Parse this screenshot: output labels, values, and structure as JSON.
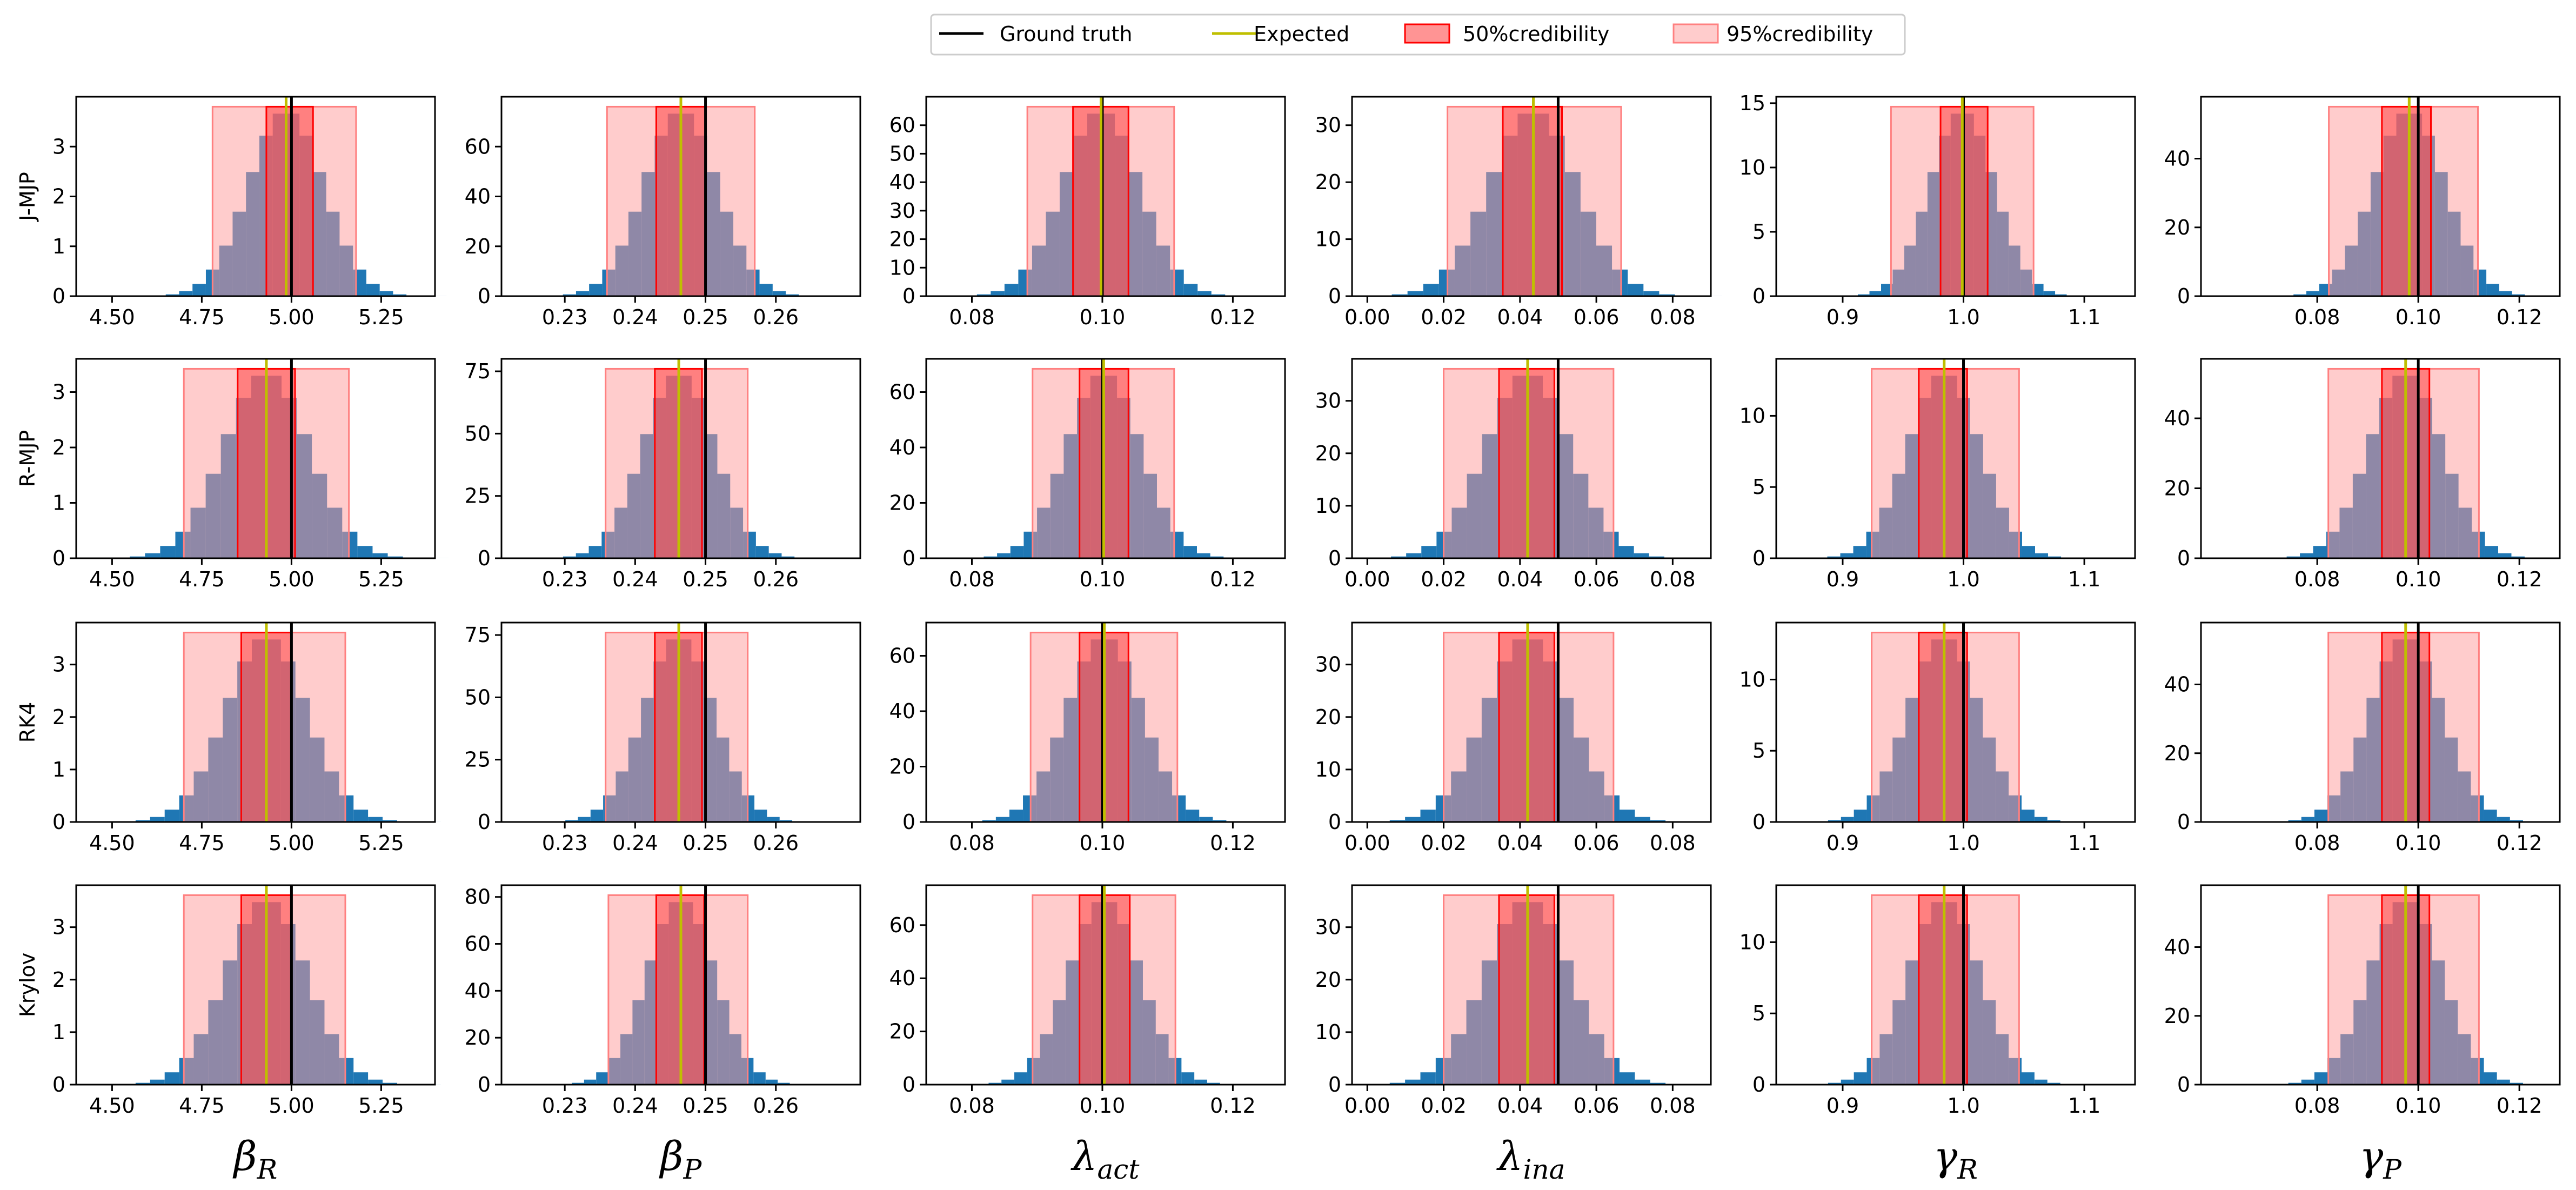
{
  "chart_data": {
    "type": "histogram-grid",
    "title": "",
    "legend": {
      "placement": "top-center",
      "entries": [
        {
          "label": "Ground truth",
          "kind": "line",
          "color": "#000000"
        },
        {
          "label": "Expected",
          "kind": "line",
          "color": "#bfbf00"
        },
        {
          "label": "50%credibility",
          "kind": "patch",
          "color": "#ff4d4d",
          "alpha": 0.6
        },
        {
          "label": "95%credibility",
          "kind": "patch",
          "color": "#ff9a9a",
          "alpha": 0.5
        }
      ]
    },
    "rows": [
      "J-MJP",
      "R-MJP",
      "RK4",
      "Krylov"
    ],
    "columns": [
      {
        "param": "beta_R",
        "xlabel_main": "β",
        "xlabel_sub": "R",
        "xlim": [
          4.4,
          5.4
        ],
        "xticks": [
          4.5,
          4.75,
          5.0,
          5.25
        ],
        "xtick_labels": [
          "4.50",
          "4.75",
          "5.00",
          "5.25"
        ],
        "ground_truth": 5.0
      },
      {
        "param": "beta_P",
        "xlabel_main": "β",
        "xlabel_sub": "P",
        "xlim": [
          0.221,
          0.272
        ],
        "xticks": [
          0.23,
          0.24,
          0.25,
          0.26
        ],
        "xtick_labels": [
          "0.23",
          "0.24",
          "0.25",
          "0.26"
        ],
        "ground_truth": 0.25
      },
      {
        "param": "lambda_act",
        "xlabel_main": "λ",
        "xlabel_sub": "act",
        "xlim": [
          0.073,
          0.128
        ],
        "xticks": [
          0.08,
          0.1,
          0.12
        ],
        "xtick_labels": [
          "0.08",
          "0.10",
          "0.12"
        ],
        "ground_truth": 0.1
      },
      {
        "param": "lambda_ina",
        "xlabel_main": "λ",
        "xlabel_sub": "ina",
        "xlim": [
          -0.004,
          0.09
        ],
        "xticks": [
          0.0,
          0.02,
          0.04,
          0.06,
          0.08
        ],
        "xtick_labels": [
          "0.00",
          "0.02",
          "0.04",
          "0.06",
          "0.08"
        ],
        "ground_truth": 0.05
      },
      {
        "param": "gamma_R",
        "xlabel_main": "γ",
        "xlabel_sub": "R",
        "xlim": [
          0.845,
          1.142
        ],
        "xticks": [
          0.9,
          1.0,
          1.1
        ],
        "xtick_labels": [
          "0.9",
          "1.0",
          "1.1"
        ],
        "ground_truth": 1.0
      },
      {
        "param": "gamma_P",
        "xlabel_main": "γ",
        "xlabel_sub": "P",
        "xlim": [
          0.057,
          0.128
        ],
        "xticks": [
          0.08,
          0.1,
          0.12
        ],
        "xtick_labels": [
          "0.08",
          "0.10",
          "0.12"
        ],
        "ground_truth": 0.1
      }
    ],
    "panels": [
      [
        {
          "mean": 4.985,
          "sd": 0.104,
          "ci50": [
            4.93,
            5.06
          ],
          "ci95": [
            4.78,
            5.18
          ],
          "ylim": [
            0,
            4
          ],
          "yticks": [
            0,
            1,
            2,
            3
          ]
        },
        {
          "mean": 0.2465,
          "sd": 0.0052,
          "ci50": [
            0.243,
            0.25
          ],
          "ci95": [
            0.236,
            0.257
          ],
          "ylim": [
            0,
            80
          ],
          "yticks": [
            0,
            20,
            40,
            60
          ]
        },
        {
          "mean": 0.0998,
          "sd": 0.0059,
          "ci50": [
            0.0955,
            0.104
          ],
          "ci95": [
            0.0885,
            0.111
          ],
          "ylim": [
            0,
            70
          ],
          "yticks": [
            0,
            10,
            20,
            30,
            40,
            50,
            60
          ]
        },
        {
          "mean": 0.0435,
          "sd": 0.0115,
          "ci50": [
            0.0355,
            0.051
          ],
          "ci95": [
            0.021,
            0.0665
          ],
          "ylim": [
            0,
            35
          ],
          "yticks": [
            0,
            10,
            20,
            30
          ]
        },
        {
          "mean": 0.999,
          "sd": 0.0268,
          "ci50": [
            0.981,
            1.02
          ],
          "ci95": [
            0.94,
            1.058
          ],
          "ylim": [
            0,
            15.5
          ],
          "yticks": [
            0,
            5,
            10,
            15
          ]
        },
        {
          "mean": 0.0982,
          "sd": 0.0071,
          "ci50": [
            0.0928,
            0.1025
          ],
          "ci95": [
            0.0823,
            0.1118
          ],
          "ylim": [
            0,
            58
          ],
          "yticks": [
            0,
            20,
            40
          ]
        }
      ],
      [
        {
          "mean": 4.93,
          "sd": 0.118,
          "ci50": [
            4.85,
            5.01
          ],
          "ci95": [
            4.7,
            5.16
          ],
          "ylim": [
            0,
            3.6
          ],
          "yticks": [
            0,
            1,
            2,
            3
          ]
        },
        {
          "mean": 0.2462,
          "sd": 0.0051,
          "ci50": [
            0.2428,
            0.2495
          ],
          "ci95": [
            0.2358,
            0.256
          ],
          "ylim": [
            0,
            80
          ],
          "yticks": [
            0,
            25,
            50,
            75
          ]
        },
        {
          "mean": 0.1002,
          "sd": 0.0057,
          "ci50": [
            0.0965,
            0.104
          ],
          "ci95": [
            0.0893,
            0.111
          ],
          "ylim": [
            0,
            72
          ],
          "yticks": [
            0,
            20,
            40,
            60
          ]
        },
        {
          "mean": 0.042,
          "sd": 0.0111,
          "ci50": [
            0.0345,
            0.049
          ],
          "ci95": [
            0.02,
            0.0645
          ],
          "ylim": [
            0,
            38
          ],
          "yticks": [
            0,
            10,
            20,
            30
          ]
        },
        {
          "mean": 0.984,
          "sd": 0.03,
          "ci50": [
            0.963,
            1.003
          ],
          "ci95": [
            0.924,
            1.046
          ],
          "ylim": [
            0,
            14
          ],
          "yticks": [
            0,
            5,
            10
          ]
        },
        {
          "mean": 0.0975,
          "sd": 0.0073,
          "ci50": [
            0.0928,
            0.1022
          ],
          "ci95": [
            0.0822,
            0.112
          ],
          "ylim": [
            0,
            57
          ],
          "yticks": [
            0,
            20,
            40
          ]
        }
      ],
      [
        {
          "mean": 4.93,
          "sd": 0.113,
          "ci50": [
            4.86,
            5.0
          ],
          "ci95": [
            4.7,
            5.15
          ],
          "ylim": [
            0,
            3.8
          ],
          "yticks": [
            0,
            1,
            2,
            3
          ]
        },
        {
          "mean": 0.2462,
          "sd": 0.005,
          "ci50": [
            0.2428,
            0.2495
          ],
          "ci95": [
            0.2358,
            0.256
          ],
          "ylim": [
            0,
            80
          ],
          "yticks": [
            0,
            25,
            50,
            75
          ]
        },
        {
          "mean": 0.1003,
          "sd": 0.0058,
          "ci50": [
            0.0965,
            0.104
          ],
          "ci95": [
            0.089,
            0.1115
          ],
          "ylim": [
            0,
            72
          ],
          "yticks": [
            0,
            20,
            40,
            60
          ]
        },
        {
          "mean": 0.042,
          "sd": 0.0112,
          "ci50": [
            0.0345,
            0.049
          ],
          "ci95": [
            0.02,
            0.0645
          ],
          "ylim": [
            0,
            38
          ],
          "yticks": [
            0,
            10,
            20,
            30
          ]
        },
        {
          "mean": 0.984,
          "sd": 0.0298,
          "ci50": [
            0.963,
            1.003
          ],
          "ci95": [
            0.924,
            1.046
          ],
          "ylim": [
            0,
            14
          ],
          "yticks": [
            0,
            5,
            10
          ]
        },
        {
          "mean": 0.0975,
          "sd": 0.0072,
          "ci50": [
            0.0928,
            0.1022
          ],
          "ci95": [
            0.0822,
            0.112
          ],
          "ylim": [
            0,
            58
          ],
          "yticks": [
            0,
            20,
            40
          ]
        }
      ],
      [
        {
          "mean": 4.93,
          "sd": 0.113,
          "ci50": [
            4.86,
            5.0
          ],
          "ci95": [
            4.7,
            5.15
          ],
          "ylim": [
            0,
            3.8
          ],
          "yticks": [
            0,
            1,
            2,
            3
          ]
        },
        {
          "mean": 0.2465,
          "sd": 0.0048,
          "ci50": [
            0.243,
            0.2498
          ],
          "ci95": [
            0.2362,
            0.256
          ],
          "ylim": [
            0,
            85
          ],
          "yticks": [
            0,
            20,
            40,
            60,
            80
          ]
        },
        {
          "mean": 0.1003,
          "sd": 0.0055,
          "ci50": [
            0.0965,
            0.1042
          ],
          "ci95": [
            0.0893,
            0.1112
          ],
          "ylim": [
            0,
            75
          ],
          "yticks": [
            0,
            20,
            40,
            60
          ]
        },
        {
          "mean": 0.042,
          "sd": 0.0112,
          "ci50": [
            0.0345,
            0.049
          ],
          "ci95": [
            0.02,
            0.0645
          ],
          "ylim": [
            0,
            38
          ],
          "yticks": [
            0,
            10,
            20,
            30
          ]
        },
        {
          "mean": 0.984,
          "sd": 0.0298,
          "ci50": [
            0.963,
            1.003
          ],
          "ci95": [
            0.924,
            1.046
          ],
          "ylim": [
            0,
            14
          ],
          "yticks": [
            0,
            5,
            10
          ]
        },
        {
          "mean": 0.0975,
          "sd": 0.0072,
          "ci50": [
            0.0928,
            0.1022
          ],
          "ci95": [
            0.0822,
            0.112
          ],
          "ylim": [
            0,
            58
          ],
          "yticks": [
            0,
            20,
            40
          ]
        }
      ]
    ],
    "histogram": {
      "bins": 24,
      "span_sd": 4.3,
      "bar_color": "#1f77b4"
    }
  }
}
